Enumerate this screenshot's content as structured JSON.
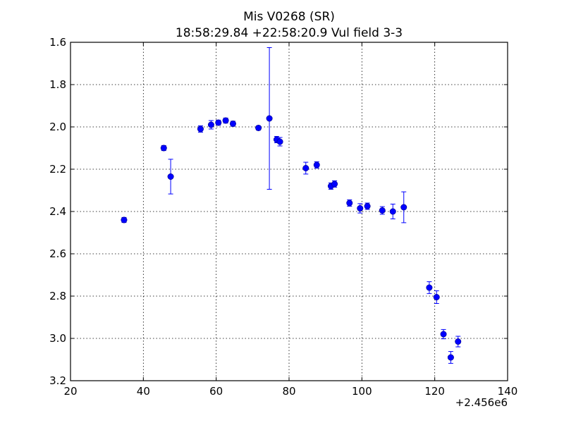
{
  "chart_data": {
    "type": "scatter",
    "title": "Mis V0268 (SR)",
    "subtitle": "18:58:29.84 +22:58:20.9 Vul field 3-3",
    "xlabel": "",
    "ylabel": "",
    "x_offset_label": "+2.456e6",
    "xlim": [
      20,
      140
    ],
    "ylim": [
      1.6,
      3.2
    ],
    "y_inverted": true,
    "grid": true,
    "x_ticks": [
      "20",
      "40",
      "60",
      "80",
      "100",
      "120",
      "140"
    ],
    "y_ticks": [
      "1.6",
      "1.8",
      "2.0",
      "2.2",
      "2.4",
      "2.6",
      "2.8",
      "3.0",
      "3.2"
    ],
    "marker_color": "#0000ff",
    "points": [
      {
        "x": 34.7,
        "y": 2.44,
        "err": 0.012
      },
      {
        "x": 45.6,
        "y": 2.1,
        "err": 0.012
      },
      {
        "x": 47.5,
        "y": 2.235,
        "err": 0.082
      },
      {
        "x": 55.7,
        "y": 2.01,
        "err": 0.015
      },
      {
        "x": 58.6,
        "y": 1.99,
        "err": 0.02
      },
      {
        "x": 60.6,
        "y": 1.98,
        "err": 0.012
      },
      {
        "x": 62.6,
        "y": 1.97,
        "err": 0.012
      },
      {
        "x": 64.6,
        "y": 1.985,
        "err": 0.012
      },
      {
        "x": 71.6,
        "y": 2.005,
        "err": 0.01
      },
      {
        "x": 74.6,
        "y": 1.96,
        "err": 0.335
      },
      {
        "x": 76.6,
        "y": 2.06,
        "err": 0.015
      },
      {
        "x": 77.5,
        "y": 2.07,
        "err": 0.02
      },
      {
        "x": 84.6,
        "y": 2.195,
        "err": 0.028
      },
      {
        "x": 87.6,
        "y": 2.18,
        "err": 0.015
      },
      {
        "x": 91.5,
        "y": 2.28,
        "err": 0.015
      },
      {
        "x": 92.5,
        "y": 2.27,
        "err": 0.015
      },
      {
        "x": 96.6,
        "y": 2.36,
        "err": 0.015
      },
      {
        "x": 99.5,
        "y": 2.385,
        "err": 0.022
      },
      {
        "x": 101.5,
        "y": 2.375,
        "err": 0.015
      },
      {
        "x": 105.6,
        "y": 2.395,
        "err": 0.018
      },
      {
        "x": 108.5,
        "y": 2.4,
        "err": 0.035
      },
      {
        "x": 111.5,
        "y": 2.38,
        "err": 0.073
      },
      {
        "x": 118.5,
        "y": 2.76,
        "err": 0.028
      },
      {
        "x": 120.5,
        "y": 2.805,
        "err": 0.03
      },
      {
        "x": 122.4,
        "y": 2.98,
        "err": 0.022
      },
      {
        "x": 124.4,
        "y": 3.09,
        "err": 0.028
      },
      {
        "x": 126.4,
        "y": 3.015,
        "err": 0.025
      }
    ]
  }
}
